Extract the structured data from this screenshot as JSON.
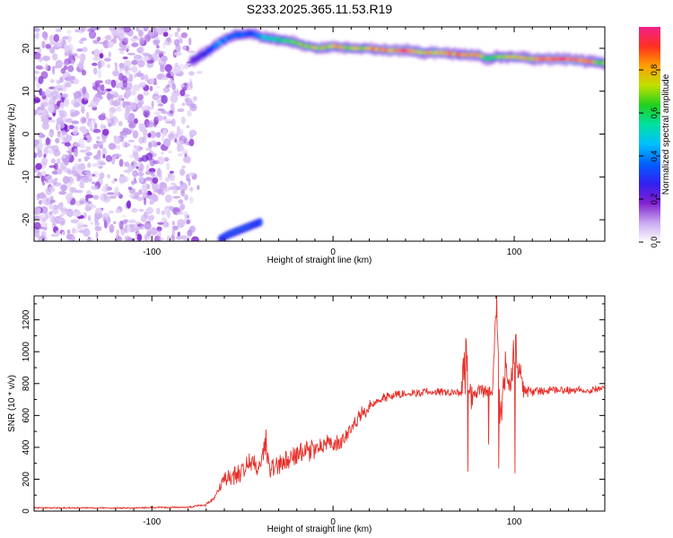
{
  "title": "S233.2025.365.11.53.R19",
  "colorbar": {
    "label": "Normalized spectral amplitude",
    "range": [
      0.0,
      1.0
    ],
    "ticks": [
      0.0,
      0.2,
      0.4,
      0.6,
      0.8
    ],
    "tick_labels": [
      "0.0",
      "0.2",
      "0.4",
      "0.6",
      "0.8"
    ],
    "colors": [
      "#ffffff",
      "#c9a8f0",
      "#8020d0",
      "#3020f0",
      "#0060ff",
      "#00c0ff",
      "#00e0a0",
      "#20d020",
      "#c0e000",
      "#ffa000",
      "#ff3020",
      "#f0208a"
    ]
  },
  "chart_data": [
    {
      "type": "heatmap",
      "title": "S233.2025.365.11.53.R19",
      "xlabel": "Height of straight line (km)",
      "ylabel": "Frequency (Hz)",
      "xlim": [
        -165,
        150
      ],
      "ylim": [
        -25,
        25
      ],
      "xticks": [
        -100,
        0,
        100
      ],
      "xtick_labels": [
        "-100",
        "0",
        "100"
      ],
      "yticks": [
        -20,
        -10,
        0,
        10,
        20
      ],
      "ytick_labels": [
        "-20",
        "-10",
        "0",
        "10",
        "20"
      ],
      "noise_region": {
        "x_from": -165,
        "x_to": -78,
        "amplitude_range": [
          0.0,
          0.15
        ]
      },
      "ridge": {
        "x": [
          -78,
          -70,
          -62,
          -55,
          -45,
          -38,
          -30,
          -22,
          -15,
          -8,
          0,
          10,
          20,
          30,
          40,
          50,
          60,
          70,
          80,
          85,
          90,
          100,
          110,
          120,
          130,
          140,
          150
        ],
        "freq": [
          17,
          19,
          21.5,
          23,
          23.5,
          22.5,
          22,
          21.5,
          20.5,
          20,
          20.5,
          20,
          20,
          19.5,
          19.5,
          19,
          19,
          18.5,
          18.5,
          17.5,
          18,
          18,
          17.5,
          17.5,
          17.5,
          17,
          16.5
        ],
        "amplitude": [
          0.2,
          0.3,
          0.45,
          0.4,
          0.35,
          0.5,
          0.6,
          0.7,
          0.8,
          0.75,
          0.85,
          0.75,
          0.8,
          0.95,
          0.95,
          0.8,
          0.9,
          0.85,
          0.9,
          0.6,
          0.7,
          0.8,
          0.85,
          0.95,
          1.0,
          0.9,
          0.7
        ]
      },
      "lower_feature": {
        "x": [
          -62,
          -58,
          -52,
          -46,
          -40
        ],
        "freq": [
          -24.5,
          -23.5,
          -22.5,
          -21.5,
          -20.5
        ],
        "amplitude": [
          0.3,
          0.45,
          0.5,
          0.45,
          0.35
        ]
      }
    },
    {
      "type": "line",
      "xlabel": "Height of straight line (km)",
      "ylabel": "SNR (10 * v/v)",
      "xlim": [
        -165,
        150
      ],
      "ylim": [
        0,
        1350
      ],
      "xticks": [
        -100,
        0,
        100
      ],
      "xtick_labels": [
        "-100",
        "0",
        "100"
      ],
      "yticks": [
        0,
        200,
        400,
        600,
        800,
        1000,
        1200
      ],
      "ytick_labels": [
        "0",
        "200",
        "400",
        "600",
        "800",
        "1000",
        "1200"
      ],
      "line_color": "#e8302a",
      "series": [
        {
          "name": "SNR",
          "x": [
            -165,
            -140,
            -110,
            -80,
            -70,
            -65,
            -60,
            -55,
            -50,
            -45,
            -40,
            -37,
            -35,
            -30,
            -25,
            -20,
            -15,
            -10,
            -5,
            0,
            5,
            10,
            15,
            20,
            25,
            30,
            40,
            50,
            60,
            70,
            73,
            75,
            78,
            80,
            85,
            88,
            90,
            92,
            95,
            98,
            100,
            105,
            110,
            120,
            130,
            140,
            150
          ],
          "y": [
            20,
            20,
            20,
            25,
            40,
            90,
            200,
            220,
            260,
            300,
            270,
            450,
            260,
            290,
            320,
            350,
            370,
            400,
            420,
            410,
            440,
            520,
            600,
            650,
            700,
            720,
            740,
            745,
            750,
            745,
            900,
            740,
            700,
            760,
            750,
            740,
            1300,
            600,
            850,
            760,
            1000,
            760,
            750,
            755,
            760,
            760,
            770
          ],
          "noise_amplitude": [
            6,
            6,
            6,
            6,
            12,
            25,
            60,
            70,
            80,
            90,
            80,
            130,
            80,
            80,
            80,
            80,
            80,
            80,
            70,
            60,
            60,
            50,
            50,
            45,
            40,
            35,
            30,
            30,
            30,
            30,
            250,
            150,
            60,
            60,
            40,
            40,
            60,
            250,
            150,
            60,
            200,
            60,
            35,
            30,
            30,
            30,
            30
          ],
          "extremes": [
            {
              "x": 73.5,
              "y": 1060
            },
            {
              "x": 74.5,
              "y": 250
            },
            {
              "x": 90.5,
              "y": 1350
            },
            {
              "x": 91.5,
              "y": 270
            },
            {
              "x": 99.5,
              "y": 1070
            },
            {
              "x": 100.5,
              "y": 240
            },
            {
              "x": 95,
              "y": 1000
            },
            {
              "x": 86,
              "y": 420
            }
          ]
        }
      ]
    }
  ]
}
